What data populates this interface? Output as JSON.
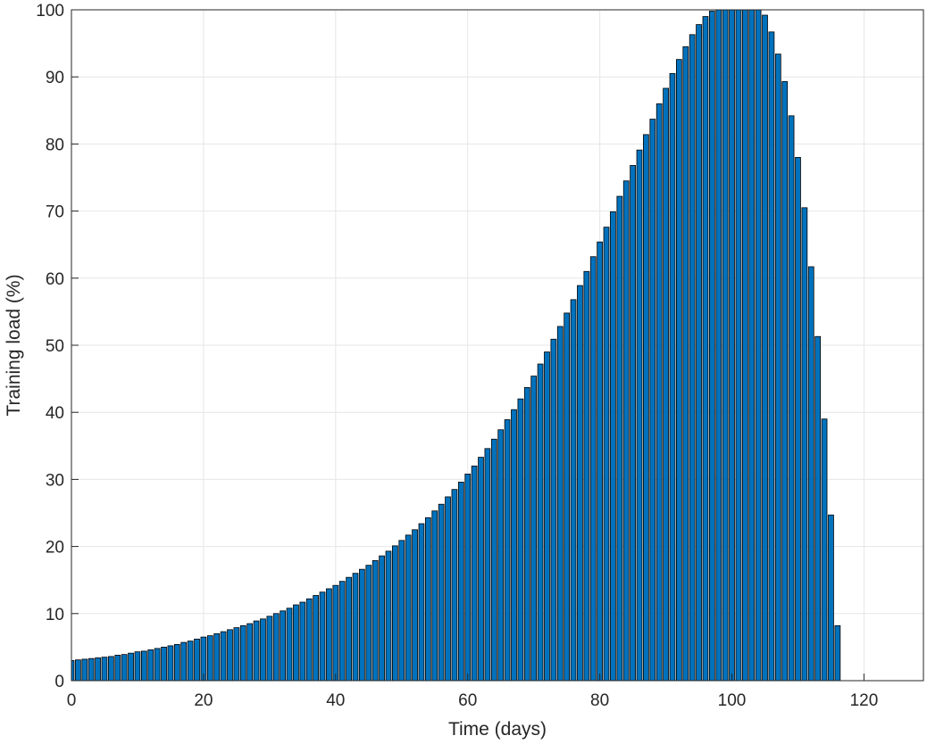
{
  "chart_data": {
    "type": "bar",
    "x_label": "Time (days)",
    "y_label": "Training load (%)",
    "x": [
      0,
      1,
      2,
      3,
      4,
      5,
      6,
      7,
      8,
      9,
      10,
      11,
      12,
      13,
      14,
      15,
      16,
      17,
      18,
      19,
      20,
      21,
      22,
      23,
      24,
      25,
      26,
      27,
      28,
      29,
      30,
      31,
      32,
      33,
      34,
      35,
      36,
      37,
      38,
      39,
      40,
      41,
      42,
      43,
      44,
      45,
      46,
      47,
      48,
      49,
      50,
      51,
      52,
      53,
      54,
      55,
      56,
      57,
      58,
      59,
      60,
      61,
      62,
      63,
      64,
      65,
      66,
      67,
      68,
      69,
      70,
      71,
      72,
      73,
      74,
      75,
      76,
      77,
      78,
      79,
      80,
      81,
      82,
      83,
      84,
      85,
      86,
      87,
      88,
      89,
      90,
      91,
      92,
      93,
      94,
      95,
      96,
      97,
      98,
      99,
      100,
      101,
      102,
      103,
      104,
      105,
      106,
      107,
      108,
      109,
      110,
      111,
      112,
      113,
      114,
      115,
      116
    ],
    "values": [
      3.0,
      3.1,
      3.2,
      3.3,
      3.4,
      3.5,
      3.6,
      3.8,
      3.9,
      4.1,
      4.3,
      4.4,
      4.6,
      4.8,
      5.0,
      5.2,
      5.4,
      5.7,
      5.9,
      6.2,
      6.5,
      6.7,
      7.0,
      7.3,
      7.6,
      7.9,
      8.2,
      8.5,
      8.9,
      9.2,
      9.6,
      10.0,
      10.4,
      10.8,
      11.3,
      11.7,
      12.2,
      12.7,
      13.2,
      13.7,
      14.2,
      14.8,
      15.4,
      16.0,
      16.6,
      17.2,
      17.9,
      18.6,
      19.3,
      20.1,
      20.9,
      21.7,
      22.5,
      23.4,
      24.3,
      25.3,
      26.3,
      27.4,
      28.5,
      29.6,
      30.8,
      32.0,
      33.3,
      34.6,
      36.0,
      37.4,
      38.9,
      40.4,
      42.0,
      43.7,
      45.4,
      47.2,
      49.0,
      50.9,
      52.8,
      54.8,
      56.8,
      58.9,
      61.0,
      63.2,
      65.4,
      67.6,
      69.9,
      72.2,
      74.5,
      76.8,
      79.1,
      81.4,
      83.7,
      86.0,
      88.3,
      90.5,
      92.6,
      94.5,
      96.3,
      97.8,
      99.0,
      99.8,
      100,
      100,
      100,
      100,
      100,
      100,
      100,
      99.2,
      96.7,
      93.4,
      89.3,
      84.2,
      78.0,
      70.5,
      61.7,
      51.3,
      39.0,
      24.7,
      8.2
    ],
    "color": "#0072bd",
    "xlim": [
      0,
      129
    ],
    "xticks": [
      0,
      20,
      40,
      60,
      80,
      100,
      120
    ],
    "ylim": [
      0,
      100
    ],
    "yticks": [
      0,
      10,
      20,
      30,
      40,
      50,
      60,
      70,
      80,
      90,
      100
    ],
    "grid": true
  }
}
